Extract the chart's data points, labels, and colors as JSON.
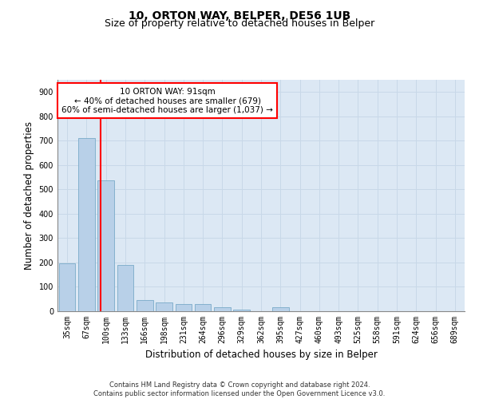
{
  "title_line1": "10, ORTON WAY, BELPER, DE56 1UB",
  "title_line2": "Size of property relative to detached houses in Belper",
  "xlabel": "Distribution of detached houses by size in Belper",
  "ylabel": "Number of detached properties",
  "footnote": "Contains HM Land Registry data © Crown copyright and database right 2024.\nContains public sector information licensed under the Open Government Licence v3.0.",
  "categories": [
    "35sqm",
    "67sqm",
    "100sqm",
    "133sqm",
    "166sqm",
    "198sqm",
    "231sqm",
    "264sqm",
    "296sqm",
    "329sqm",
    "362sqm",
    "395sqm",
    "427sqm",
    "460sqm",
    "493sqm",
    "525sqm",
    "558sqm",
    "591sqm",
    "624sqm",
    "656sqm",
    "689sqm"
  ],
  "values": [
    197,
    710,
    537,
    191,
    47,
    37,
    30,
    28,
    15,
    8,
    0,
    18,
    0,
    0,
    0,
    0,
    0,
    0,
    0,
    0,
    0
  ],
  "bar_color": "#b8d0e8",
  "bar_edge_color": "#7aaac8",
  "annotation_text": "10 ORTON WAY: 91sqm\n← 40% of detached houses are smaller (679)\n60% of semi-detached houses are larger (1,037) →",
  "annotation_box_color": "white",
  "annotation_box_edge_color": "red",
  "red_line_color": "red",
  "ylim": [
    0,
    950
  ],
  "yticks": [
    0,
    100,
    200,
    300,
    400,
    500,
    600,
    700,
    800,
    900
  ],
  "grid_color": "#c8d8e8",
  "background_color": "#dce8f4",
  "title_fontsize": 10,
  "subtitle_fontsize": 9,
  "tick_fontsize": 7,
  "ylabel_fontsize": 8.5,
  "xlabel_fontsize": 8.5,
  "footnote_fontsize": 6,
  "annotation_fontsize": 7.5
}
